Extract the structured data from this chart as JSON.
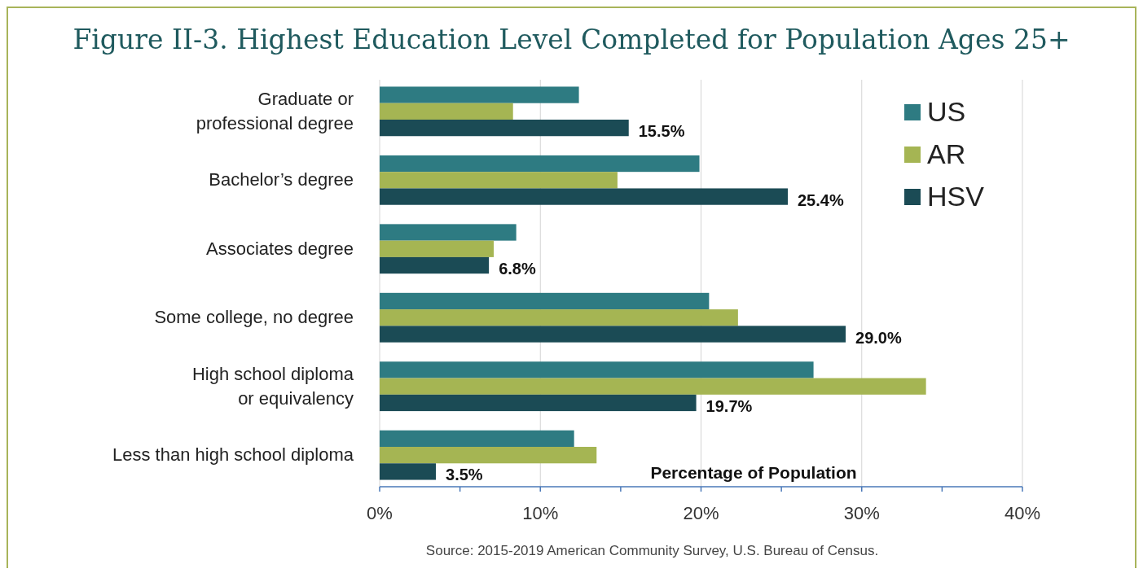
{
  "chart_data": {
    "type": "bar",
    "orientation": "horizontal",
    "title": "Figure II-3. Highest Education Level Completed for Population Ages 25+",
    "xlabel": "Percentage of Population",
    "categories": [
      "Graduate or professional degree",
      "Bachelor’s degree",
      "Associates degree",
      "Some college, no degree",
      "High school diploma or equivalency",
      "Less than high school diploma"
    ],
    "series": [
      {
        "name": "US",
        "color": "#2e7b82",
        "values": [
          12.4,
          19.9,
          8.5,
          20.5,
          27.0,
          12.1
        ]
      },
      {
        "name": "AR",
        "color": "#a5b553",
        "values": [
          8.3,
          14.8,
          7.1,
          22.3,
          34.0,
          13.5
        ]
      },
      {
        "name": "HSV",
        "color": "#1b4b55",
        "values": [
          15.5,
          25.4,
          6.8,
          29.0,
          19.7,
          3.5
        ],
        "value_labels": [
          "15.5%",
          "25.4%",
          "6.8%",
          "29.0%",
          "19.7%",
          "3.5%"
        ]
      }
    ],
    "xlim": [
      0,
      40
    ],
    "xticks": [
      {
        "value": 0,
        "label": "0%"
      },
      {
        "value": 5,
        "label": null
      },
      {
        "value": 10,
        "label": "10%"
      },
      {
        "value": 15,
        "label": null
      },
      {
        "value": 20,
        "label": "20%"
      },
      {
        "value": 25,
        "label": null
      },
      {
        "value": 30,
        "label": "30%"
      },
      {
        "value": 35,
        "label": null
      },
      {
        "value": 40,
        "label": "40%"
      }
    ],
    "grid": "x",
    "legend": "top right",
    "annotations": [
      "Source: 2015-2019 American Community Survey, U.S. Bureau of Census."
    ]
  }
}
